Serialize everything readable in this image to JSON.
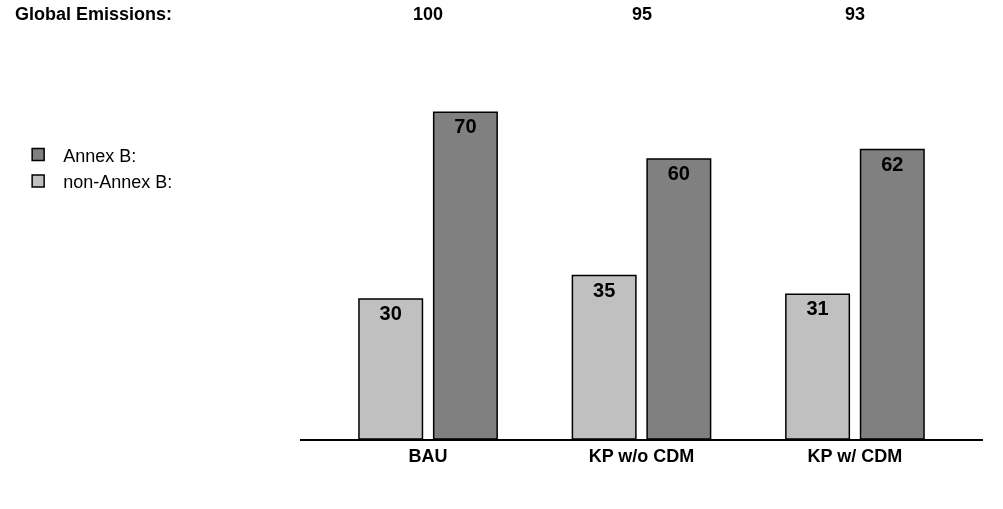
{
  "chart_data": {
    "type": "bar",
    "categories": [
      "BAU",
      "KP w/o CDM",
      "KP w/ CDM"
    ],
    "series": [
      {
        "name": "non-Annex B:",
        "color": "#c0c0c0",
        "values": [
          30,
          35,
          31
        ]
      },
      {
        "name": "Annex B:",
        "color": "#808080",
        "values": [
          70,
          60,
          62
        ]
      }
    ],
    "data_labels": true,
    "annotations": [
      "Global Emissions:",
      "100",
      "95",
      "93"
    ],
    "legend": "left"
  }
}
